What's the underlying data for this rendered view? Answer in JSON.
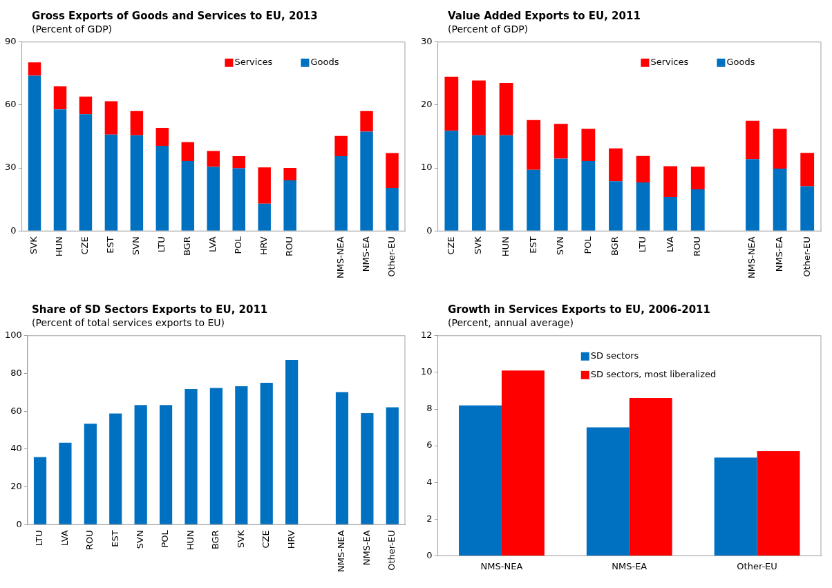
{
  "chart_data": [
    {
      "type": "bar",
      "title": "Gross Exports of Goods and Services to EU, 2013",
      "subtitle": "(Percent of GDP)",
      "categories": [
        "SVK",
        "HUN",
        "CZE",
        "EST",
        "SVN",
        "LTU",
        "BGR",
        "LVA",
        "POL",
        "HRV",
        "ROU",
        null,
        "NMS-NEA",
        "NMS-EA",
        "Other-EU"
      ],
      "stacked": true,
      "ylim": [
        0,
        90
      ],
      "yticks": [
        0,
        30,
        60,
        90
      ],
      "grid": false,
      "legend": "top right",
      "series": [
        {
          "name": "Goods",
          "color": "#0070c0",
          "values": [
            74,
            57.9,
            55.6,
            45.9,
            45.6,
            40.6,
            33.3,
            30.5,
            29.9,
            13,
            24.1,
            null,
            35.6,
            47.3,
            20.5
          ]
        },
        {
          "name": "Services",
          "color": "#ff0000",
          "values": [
            6.3,
            11,
            8.4,
            15.9,
            11.5,
            8.5,
            9,
            7.6,
            5.7,
            17.3,
            5.9,
            null,
            9.7,
            9.8,
            16.6
          ]
        }
      ]
    },
    {
      "type": "bar",
      "title": "Value Added Exports to EU, 2011",
      "subtitle": "(Percent of GDP)",
      "categories": [
        "CZE",
        "SVK",
        "HUN",
        "EST",
        "SVN",
        "POL",
        "BGR",
        "LTU",
        "LVA",
        "ROU",
        null,
        "NMS-NEA",
        "NMS-EA",
        "Other-EU"
      ],
      "stacked": true,
      "ylim": [
        0,
        30
      ],
      "yticks": [
        0,
        10,
        20,
        30
      ],
      "grid": false,
      "legend": "top right",
      "series": [
        {
          "name": "Goods",
          "color": "#0070c0",
          "values": [
            15.9,
            15.2,
            15.2,
            9.7,
            11.5,
            11.1,
            7.9,
            7.7,
            5.4,
            6.6,
            null,
            11.4,
            9.9,
            7.1
          ]
        },
        {
          "name": "Services",
          "color": "#ff0000",
          "values": [
            8.6,
            8.7,
            8.3,
            7.9,
            5.5,
            5.1,
            5.2,
            4.2,
            4.9,
            3.6,
            null,
            6.1,
            6.3,
            5.3
          ]
        }
      ]
    },
    {
      "type": "bar",
      "title": "Share of SD Sectors Exports to EU, 2011",
      "subtitle": "(Percent of total services exports to EU)",
      "categories": [
        "LTU",
        "LVA",
        "ROU",
        "EST",
        "SVN",
        "POL",
        "HUN",
        "BGR",
        "SVK",
        "CZE",
        "HRV",
        null,
        "NMS-NEA",
        "NMS-EA",
        "Other-EU"
      ],
      "ylim": [
        0,
        100
      ],
      "yticks": [
        0,
        20,
        40,
        60,
        80,
        100
      ],
      "grid": false,
      "legend": false,
      "color": "#0070c0",
      "values": [
        35.8,
        43.3,
        53.4,
        58.8,
        63.3,
        63.3,
        71.8,
        72.3,
        73.2,
        75.1,
        87.1,
        null,
        70.1,
        59,
        62.1
      ]
    },
    {
      "type": "bar",
      "title": "Growth in Services Exports to EU, 2006-2011",
      "subtitle": "(Percent, annual average)",
      "categories": [
        "NMS-NEA",
        "NMS-EA",
        "Other-EU"
      ],
      "ylim": [
        0,
        12
      ],
      "yticks": [
        0,
        2,
        4,
        6,
        8,
        10,
        12
      ],
      "grid": false,
      "legend": "top",
      "series": [
        {
          "name": "SD sectors",
          "color": "#0070c0",
          "values": [
            8.2,
            7,
            5.35
          ]
        },
        {
          "name": "SD sectors, most liberalized",
          "color": "#ff0000",
          "values": [
            10.1,
            8.6,
            5.7
          ]
        }
      ]
    }
  ]
}
